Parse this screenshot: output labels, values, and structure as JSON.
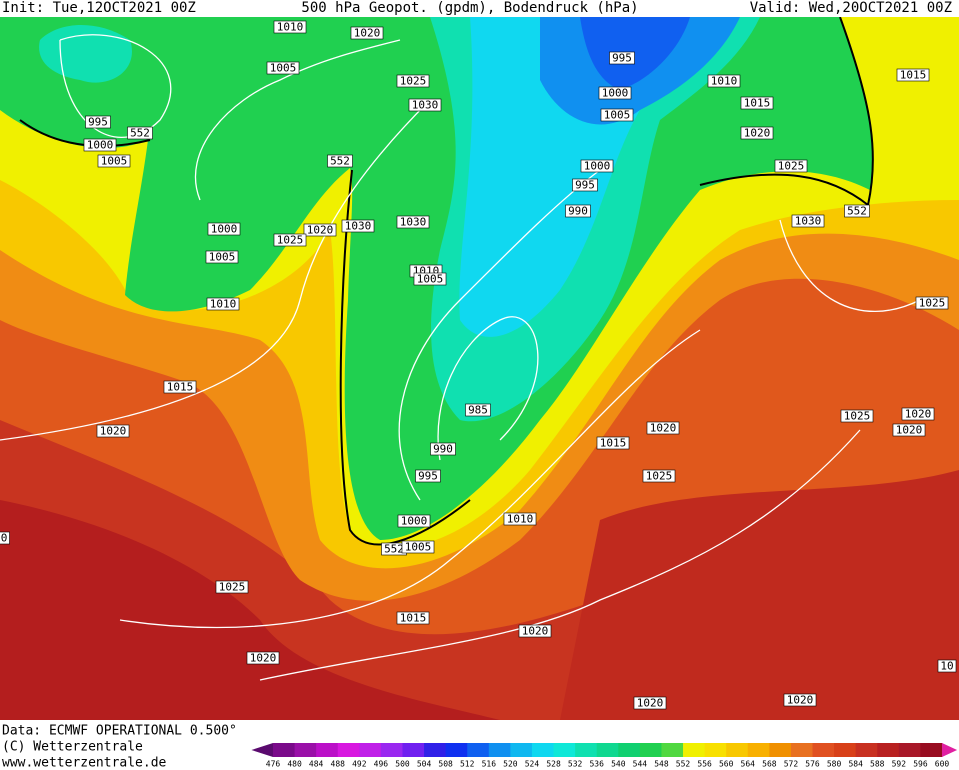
{
  "header": {
    "init": "Init: Tue,12OCT2021 00Z",
    "title": "500 hPa Geopot. (gpdm), Bodendruck (hPa)",
    "valid": "Valid: Wed,20OCT2021 00Z"
  },
  "isobar_labels": [
    "1010",
    "1020",
    "1005",
    "1025",
    "1030",
    "995",
    "552",
    "1000",
    "1005",
    "552",
    "1000",
    "1030",
    "1020",
    "1025",
    "1030",
    "1005",
    "1010",
    "1010",
    "1005",
    "1015",
    "1020",
    "995",
    "1000",
    "1010",
    "1005",
    "1015",
    "1020",
    "1000",
    "995",
    "990",
    "1025",
    "1030",
    "552",
    "1015",
    "1025",
    "985",
    "990",
    "995",
    "1000",
    "552",
    "1005",
    "1010",
    "1015",
    "1020",
    "1025",
    "1025",
    "1020",
    "1020",
    "1025",
    "1015",
    "1020",
    "1020",
    "1020",
    "1020",
    "0",
    "10"
  ],
  "footer": {
    "data": "Data: ECMWF OPERATIONAL 0.500°",
    "copyright": "(C) Wetterzentrale",
    "url": "www.wetterzentrale.de"
  },
  "legend": {
    "values": [
      476,
      480,
      484,
      488,
      492,
      496,
      500,
      504,
      508,
      512,
      516,
      520,
      524,
      528,
      532,
      536,
      540,
      544,
      548,
      552,
      556,
      560,
      564,
      568,
      572,
      576,
      580,
      584,
      588,
      592,
      596,
      600
    ],
    "colors": [
      "#5a0a6e",
      "#7a0a8a",
      "#9a10a8",
      "#bb10c8",
      "#d818e0",
      "#c020e8",
      "#9a28f0",
      "#7020f0",
      "#3020e8",
      "#1030f0",
      "#1060f0",
      "#1090f0",
      "#10b8f0",
      "#10d8f0",
      "#10e8d8",
      "#10e0b0",
      "#10d890",
      "#10d070",
      "#20d050",
      "#50d840",
      "#f0f000",
      "#f8e000",
      "#f8c800",
      "#f8b000",
      "#f09000",
      "#e87020",
      "#e05020",
      "#d84018",
      "#c83020",
      "#b82020",
      "#a81828",
      "#980c20",
      "#e020a0"
    ]
  }
}
